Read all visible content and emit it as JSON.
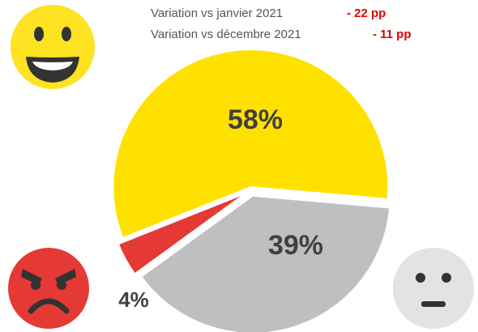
{
  "chart_data": {
    "type": "pie",
    "annotations": [
      {
        "text": "Variation vs janvier 2021",
        "delta": "- 22 pp"
      },
      {
        "text": "Variation vs décembre 2021",
        "delta": "- 11 pp"
      }
    ],
    "values": [
      39,
      4,
      58
    ],
    "value_labels": [
      "39%",
      "4%",
      "58%"
    ],
    "colors": [
      "#bfbfbf",
      "#e53935",
      "#ffe100"
    ]
  }
}
